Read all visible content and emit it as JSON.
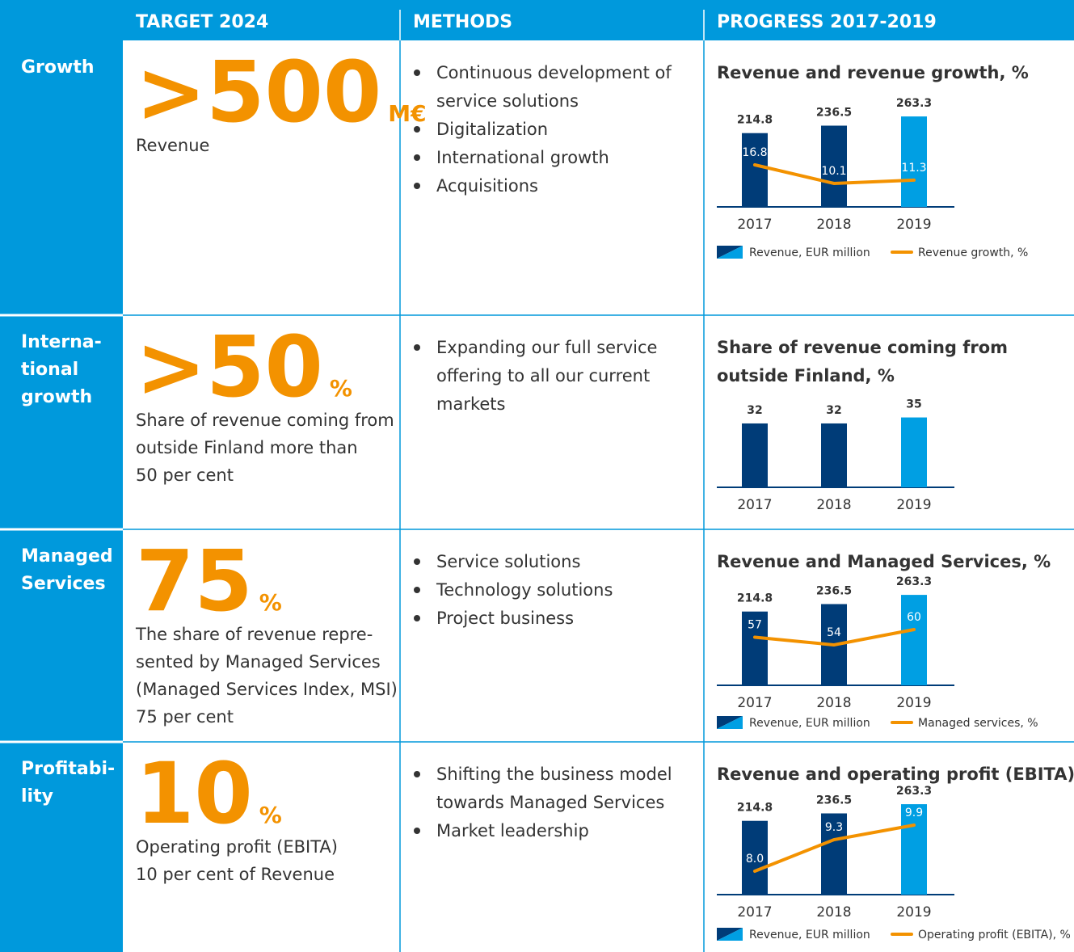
{
  "header": {
    "columns": [
      "TARGET 2024",
      "METHODS",
      "PROGRESS 2017-2019"
    ]
  },
  "rows": [
    {
      "label": [
        "Growth"
      ],
      "target": {
        "value": ">500",
        "unit": "M€",
        "description": [
          "Revenue"
        ]
      },
      "methods": [
        [
          "Continuous development of",
          "service solutions"
        ],
        [
          "Digitalization"
        ],
        [
          "International growth"
        ],
        [
          "Acquisitions"
        ]
      ],
      "chart": {
        "type": "bar",
        "title": [
          "Revenue and revenue growth, %"
        ],
        "categories": [
          "2017",
          "2018",
          "2019"
        ],
        "series": [
          {
            "name": "Revenue, EUR million",
            "type": "bar",
            "colors": [
              "#003c78",
              "#003c78",
              "#009fe3"
            ],
            "values": [
              214.8,
              236.5,
              263.3
            ]
          },
          {
            "name": "Revenue growth, %",
            "type": "line",
            "color": "#f39200",
            "values": [
              16.8,
              10.1,
              11.3
            ]
          }
        ]
      }
    },
    {
      "label": [
        "Interna-",
        "tional",
        "growth"
      ],
      "target": {
        "value": ">50",
        "unit": "%",
        "description": [
          "Share of revenue coming from",
          "outside Finland more than",
          "50 per cent"
        ]
      },
      "methods": [
        [
          "Expanding our full service",
          "offering to all our current",
          "markets"
        ]
      ],
      "chart": {
        "type": "bar",
        "title": [
          "Share of revenue coming from",
          "outside Finland, %"
        ],
        "categories": [
          "2017",
          "2018",
          "2019"
        ],
        "series": [
          {
            "type": "bar",
            "colors": [
              "#003c78",
              "#003c78",
              "#009fe3"
            ],
            "values": [
              32,
              32,
              35
            ]
          }
        ]
      }
    },
    {
      "label": [
        "Managed",
        "Services"
      ],
      "target": {
        "value": "75",
        "unit": "%",
        "description": [
          "The share of revenue repre-",
          "sented by Managed Services",
          "(Managed Services Index, MSI)",
          "75 per cent"
        ]
      },
      "methods": [
        [
          "Service solutions"
        ],
        [
          "Technology solutions"
        ],
        [
          "Project business"
        ]
      ],
      "chart": {
        "type": "bar",
        "title": [
          "Revenue and Managed Services, %"
        ],
        "categories": [
          "2017",
          "2018",
          "2019"
        ],
        "series": [
          {
            "name": "Revenue, EUR million",
            "type": "bar",
            "colors": [
              "#003c78",
              "#003c78",
              "#009fe3"
            ],
            "values": [
              214.8,
              236.5,
              263.3
            ]
          },
          {
            "name": "Managed services, %",
            "type": "line",
            "color": "#f39200",
            "values": [
              57,
              54,
              60
            ]
          }
        ]
      }
    },
    {
      "label": [
        "Profitabi-",
        "lity"
      ],
      "target": {
        "value": "10",
        "unit": "%",
        "description": [
          "Operating profit (EBITA)",
          "10 per cent of Revenue"
        ]
      },
      "methods": [
        [
          "Shifting the business model",
          "towards Managed Services"
        ],
        [
          "Market leadership"
        ]
      ],
      "chart": {
        "type": "bar",
        "title": [
          "Revenue and operating profit (EBITA), %"
        ],
        "categories": [
          "2017",
          "2018",
          "2019"
        ],
        "series": [
          {
            "name": "Revenue, EUR million",
            "type": "bar",
            "colors": [
              "#003c78",
              "#003c78",
              "#009fe3"
            ],
            "values": [
              214.8,
              236.5,
              263.3
            ]
          },
          {
            "name": "Operating profit (EBITA), %",
            "type": "line",
            "color": "#f39200",
            "values": [
              8.0,
              9.3,
              9.9
            ],
            "value_labels": [
              "8.0",
              "9.3",
              "9.9"
            ]
          }
        ]
      }
    }
  ]
}
